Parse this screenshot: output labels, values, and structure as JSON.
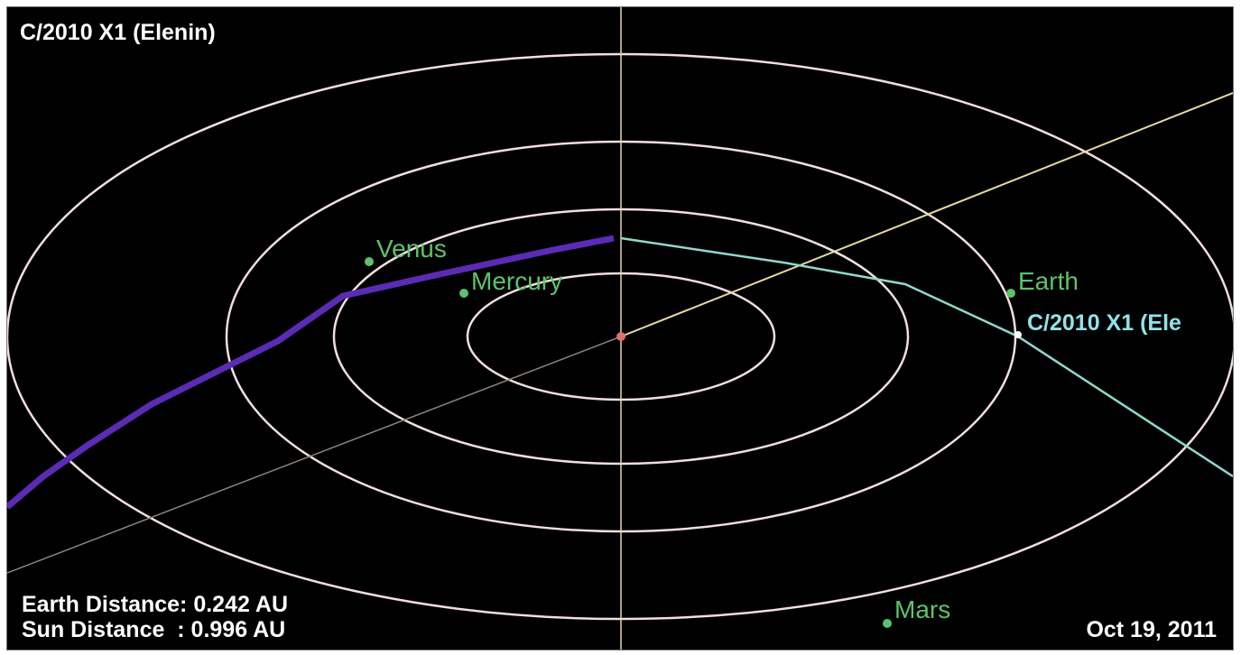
{
  "title": "C/2010 X1 (Elenin)",
  "earth_distance": "Earth Distance: 0.242 AU",
  "sun_distance": "Sun Distance  : 0.996 AU",
  "date": "Oct 19, 2011",
  "planets": [
    {
      "name": "Venus"
    },
    {
      "name": "Mercury"
    },
    {
      "name": "Earth"
    },
    {
      "name": "Mars"
    }
  ],
  "comet_label": "C/2010 X1 (Ele",
  "colors": {
    "background": "#000000",
    "orbit": "#f2dede",
    "planet": "#5ec26a",
    "comet_before": "#5b2bb5",
    "comet_after": "#8fd9cc",
    "axis": "#e8d9a0",
    "sun": "#e07070"
  }
}
